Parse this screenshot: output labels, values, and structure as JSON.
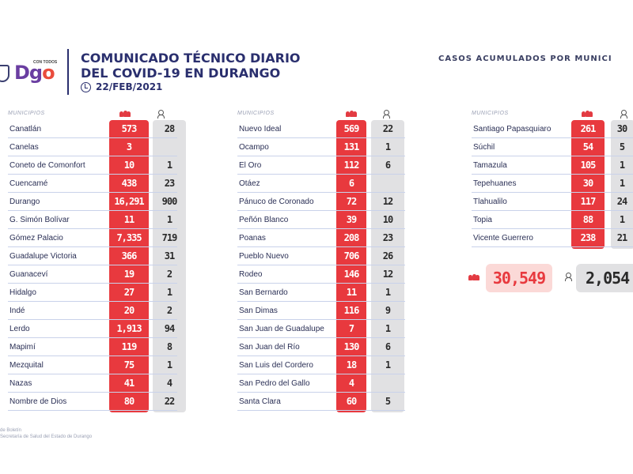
{
  "logo": {
    "text_d": "Dg",
    "text_o": "o",
    "tag": "CON TODOS"
  },
  "title": {
    "line1": "COMUNICADO TÉCNICO DIARIO",
    "line2": "DEL COVID-19 EN DURANGO",
    "date": "22/FEB/2021"
  },
  "header_right": "CASOS ACUMULADOS POR MUNICI",
  "column_label": "MUNICIPIOS",
  "icons": {
    "cases": "people-group-icon",
    "deaths": "person-icon",
    "clock": "clock-icon",
    "seal": "state-seal-icon"
  },
  "colors": {
    "red": "#e8393e",
    "grey": "#e1e1e3",
    "navy": "#2a2f6e"
  },
  "table1": [
    {
      "name": "Canatlán",
      "cases": "573",
      "deaths": "28"
    },
    {
      "name": "Canelas",
      "cases": "3",
      "deaths": ""
    },
    {
      "name": "Coneto de Comonfort",
      "cases": "10",
      "deaths": "1"
    },
    {
      "name": "Cuencamé",
      "cases": "438",
      "deaths": "23"
    },
    {
      "name": "Durango",
      "cases": "16,291",
      "deaths": "900"
    },
    {
      "name": "G. Simón Bolívar",
      "cases": "11",
      "deaths": "1"
    },
    {
      "name": "Gómez Palacio",
      "cases": "7,335",
      "deaths": "719"
    },
    {
      "name": "Guadalupe Victoria",
      "cases": "366",
      "deaths": "31"
    },
    {
      "name": "Guanaceví",
      "cases": "19",
      "deaths": "2"
    },
    {
      "name": "Hidalgo",
      "cases": "27",
      "deaths": "1"
    },
    {
      "name": "Indé",
      "cases": "20",
      "deaths": "2"
    },
    {
      "name": "Lerdo",
      "cases": "1,913",
      "deaths": "94"
    },
    {
      "name": "Mapimí",
      "cases": "119",
      "deaths": "8"
    },
    {
      "name": "Mezquital",
      "cases": "75",
      "deaths": "1"
    },
    {
      "name": "Nazas",
      "cases": "41",
      "deaths": "4"
    },
    {
      "name": "Nombre de Dios",
      "cases": "80",
      "deaths": "22"
    }
  ],
  "table2": [
    {
      "name": "Nuevo Ideal",
      "cases": "569",
      "deaths": "22"
    },
    {
      "name": "Ocampo",
      "cases": "131",
      "deaths": "1"
    },
    {
      "name": "El Oro",
      "cases": "112",
      "deaths": "6"
    },
    {
      "name": "Otáez",
      "cases": "6",
      "deaths": ""
    },
    {
      "name": "Pánuco de Coronado",
      "cases": "72",
      "deaths": "12"
    },
    {
      "name": "Peñón Blanco",
      "cases": "39",
      "deaths": "10"
    },
    {
      "name": "Poanas",
      "cases": "208",
      "deaths": "23"
    },
    {
      "name": "Pueblo Nuevo",
      "cases": "706",
      "deaths": "26"
    },
    {
      "name": "Rodeo",
      "cases": "146",
      "deaths": "12"
    },
    {
      "name": "San Bernardo",
      "cases": "11",
      "deaths": "1"
    },
    {
      "name": "San Dimas",
      "cases": "116",
      "deaths": "9"
    },
    {
      "name": "San Juan de Guadalupe",
      "cases": "7",
      "deaths": "1"
    },
    {
      "name": "San Juan del Río",
      "cases": "130",
      "deaths": "6"
    },
    {
      "name": "San Luis del Cordero",
      "cases": "18",
      "deaths": "1"
    },
    {
      "name": "San Pedro del Gallo",
      "cases": "4",
      "deaths": ""
    },
    {
      "name": "Santa Clara",
      "cases": "60",
      "deaths": "5"
    }
  ],
  "table3": [
    {
      "name": "Santiago Papasquiaro",
      "cases": "261",
      "deaths": "30"
    },
    {
      "name": "Súchil",
      "cases": "54",
      "deaths": "5"
    },
    {
      "name": "Tamazula",
      "cases": "105",
      "deaths": "1"
    },
    {
      "name": "Tepehuanes",
      "cases": "30",
      "deaths": "1"
    },
    {
      "name": "Tlahualilo",
      "cases": "117",
      "deaths": "24"
    },
    {
      "name": "Topia",
      "cases": "88",
      "deaths": "1"
    },
    {
      "name": "Vicente Guerrero",
      "cases": "238",
      "deaths": "21"
    }
  ],
  "totals": {
    "cases": "30,549",
    "deaths": "2,054"
  },
  "source": {
    "line1": "de Boletín",
    "line2": "Secretaría de Salud del Estado de Durango"
  }
}
